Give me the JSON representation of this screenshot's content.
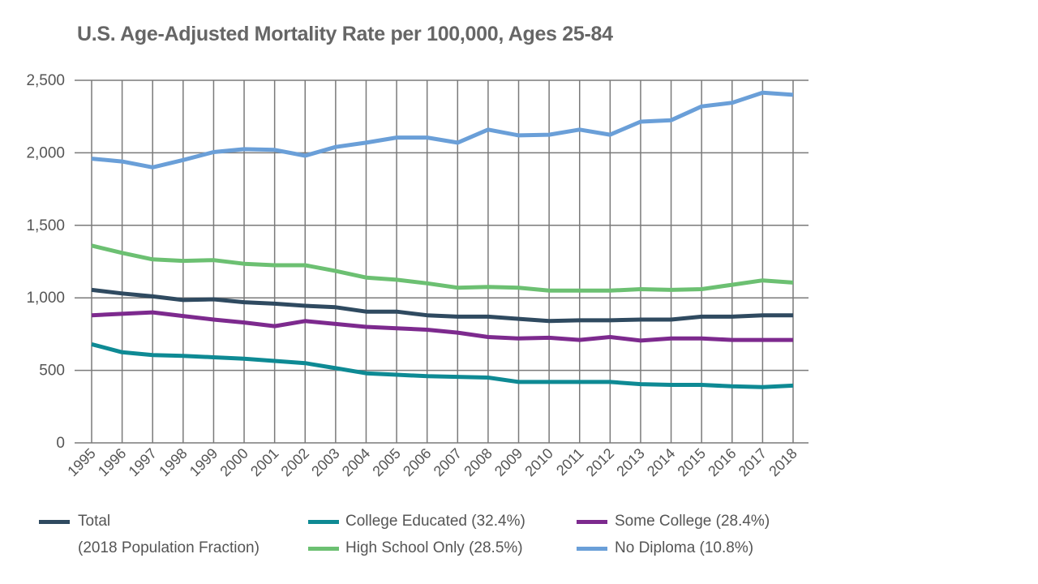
{
  "chart_data": {
    "type": "line",
    "title": "U.S. Age-Adjusted Mortality Rate per 100,000, Ages 25-84",
    "xlabel": "",
    "ylabel": "",
    "x": [
      1995,
      1996,
      1997,
      1998,
      1999,
      2000,
      2001,
      2002,
      2003,
      2004,
      2005,
      2006,
      2007,
      2008,
      2009,
      2010,
      2011,
      2012,
      2013,
      2014,
      2015,
      2016,
      2017,
      2018
    ],
    "ylim": [
      0,
      2500
    ],
    "yticks": [
      "0",
      "500",
      "1,000",
      "1,500",
      "2,000",
      "2,500"
    ],
    "grid": true,
    "legend_placement": "bottom",
    "legend_note": "(2018 Population Fraction)",
    "series": [
      {
        "name": "Total",
        "color": "#2f4a60",
        "values": [
          1055,
          1030,
          1010,
          985,
          990,
          970,
          960,
          945,
          935,
          905,
          905,
          880,
          870,
          870,
          855,
          840,
          845,
          845,
          850,
          850,
          870,
          870,
          880,
          880
        ]
      },
      {
        "name": "College Educated (32.4%)",
        "color": "#0e8a94",
        "values": [
          680,
          625,
          605,
          600,
          590,
          580,
          565,
          550,
          515,
          480,
          470,
          460,
          455,
          450,
          420,
          420,
          420,
          420,
          405,
          400,
          400,
          390,
          385,
          395
        ]
      },
      {
        "name": "Some College (28.4%)",
        "color": "#7d2a8e",
        "values": [
          880,
          890,
          900,
          875,
          850,
          830,
          805,
          840,
          820,
          800,
          790,
          780,
          760,
          730,
          720,
          725,
          710,
          730,
          705,
          720,
          720,
          710,
          710,
          710
        ]
      },
      {
        "name": "High School Only (28.5%)",
        "color": "#6cc072",
        "values": [
          1360,
          1310,
          1265,
          1255,
          1260,
          1235,
          1225,
          1225,
          1185,
          1140,
          1125,
          1100,
          1070,
          1075,
          1070,
          1050,
          1050,
          1050,
          1060,
          1055,
          1060,
          1090,
          1120,
          1105
        ]
      },
      {
        "name": "No Diploma (10.8%)",
        "color": "#6a9fd8",
        "values": [
          1960,
          1940,
          1900,
          1950,
          2005,
          2025,
          2020,
          1980,
          2040,
          2070,
          2105,
          2105,
          2070,
          2160,
          2120,
          2125,
          2160,
          2125,
          2215,
          2225,
          2320,
          2345,
          2415,
          2400
        ]
      }
    ]
  }
}
